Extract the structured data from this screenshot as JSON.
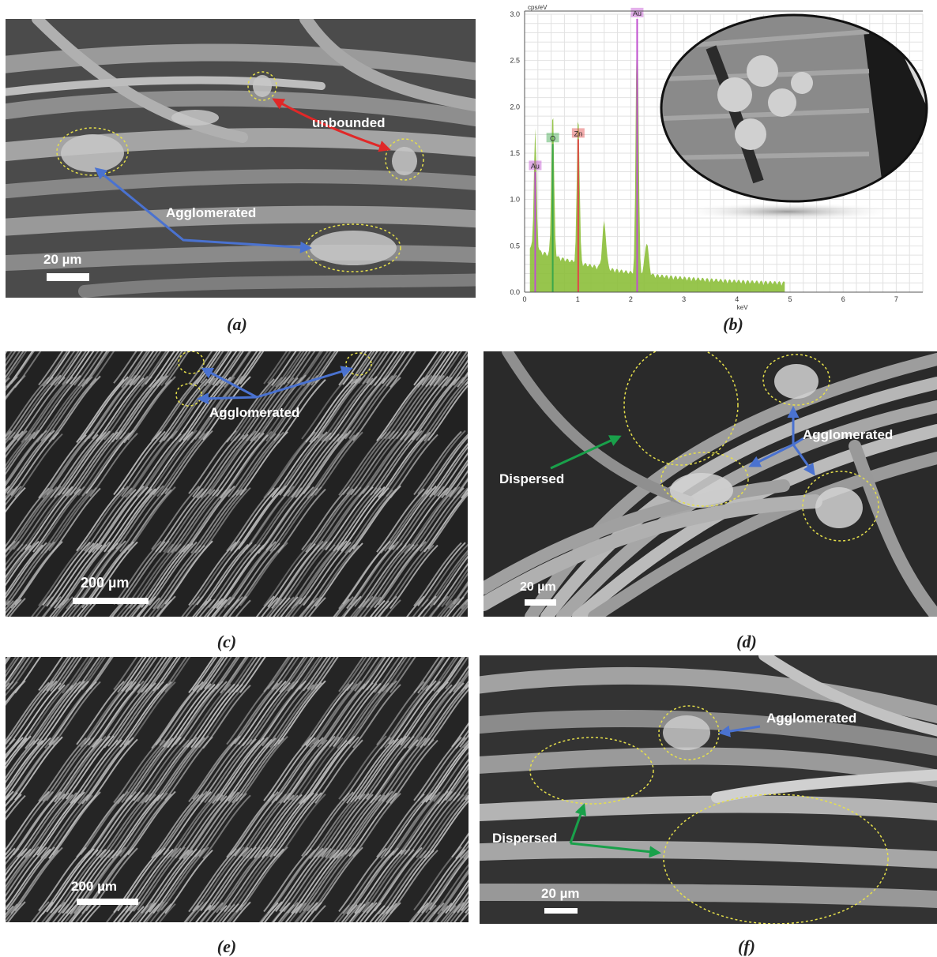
{
  "panels": {
    "a": {
      "caption": "(a)",
      "scale_bar": "20 µm",
      "annotations": {
        "unbounded": "unbounded",
        "agglomerated": "Agglomerated"
      }
    },
    "b": {
      "caption": "(b)",
      "chart_data": {
        "type": "line",
        "title": "",
        "ylabel": "cps/eV",
        "xlabel": "keV",
        "xlim": [
          0,
          7.5
        ],
        "ylim": [
          0,
          3.0
        ],
        "x_ticks": [
          "0",
          "1",
          "2",
          "3",
          "4",
          "5",
          "6",
          "7"
        ],
        "y_ticks": [
          "0.0",
          "0.5",
          "1.0",
          "1.5",
          "2.0",
          "2.5",
          "3.0"
        ],
        "grid": true,
        "peaks": [
          {
            "element": "Au",
            "energy_keV": 0.2,
            "cps_per_eV": 1.3,
            "color": "#c04fd0"
          },
          {
            "element": "O",
            "energy_keV": 0.53,
            "cps_per_eV": 1.6,
            "color": "#3aa64a"
          },
          {
            "element": "Zn",
            "energy_keV": 1.01,
            "cps_per_eV": 1.65,
            "color": "#e04848"
          },
          {
            "element": "Au",
            "energy_keV": 2.12,
            "cps_per_eV": 2.95,
            "color": "#c04fd0"
          }
        ],
        "spectrum_color": "#7cb33a"
      }
    },
    "c": {
      "caption": "(c)",
      "scale_bar": "200 µm",
      "annotations": {
        "agglomerated": "Agglomerated"
      }
    },
    "d": {
      "caption": "(d)",
      "scale_bar": "20 µm",
      "annotations": {
        "dispersed": "Dispersed",
        "agglomerated": "Agglomerated"
      }
    },
    "e": {
      "caption": "(e)",
      "scale_bar": "200 µm"
    },
    "f": {
      "caption": "(f)",
      "scale_bar": "20 µm",
      "annotations": {
        "dispersed": "Dispersed",
        "agglomerated": "Agglomerated"
      }
    }
  }
}
